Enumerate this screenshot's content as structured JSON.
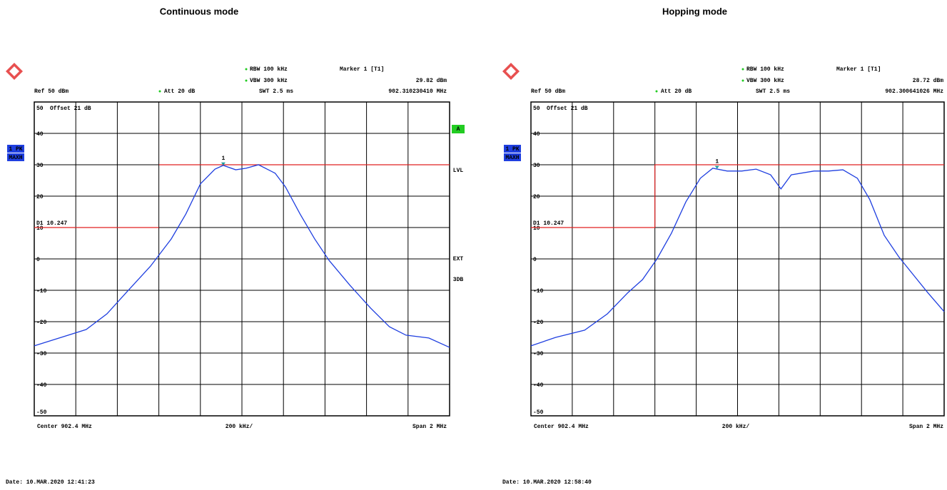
{
  "chart_data": [
    {
      "type": "line",
      "title": "Continuous mode",
      "ref_label": "Ref 50 dBm",
      "att_label": "Att 20 dB",
      "rbw_label": "RBW 100 kHz",
      "vbw_label": "VBW 300 kHz",
      "swt_label": "SWT 2.5 ms",
      "offset_label": "Offset 21 dB",
      "marker_title": "Marker 1 [T1]",
      "marker_level_label": "29.82 dBm",
      "marker_freq_label": "902.310230410 MHz",
      "center_label": "Center 902.4 MHz",
      "div_label": "200 kHz/",
      "span_label": "Span 2 MHz",
      "date_label": "Date: 10.MAR.2020 12:41:23",
      "trace_labels": [
        "1 PK",
        "MAXH"
      ],
      "side_labels": [
        "A",
        "LVL",
        "EXT",
        "3DB"
      ],
      "limit_label": "D1 10.247",
      "xlim": [
        901.4,
        903.4
      ],
      "xticks": [
        901.4,
        901.6,
        901.8,
        902.0,
        902.2,
        902.4,
        902.6,
        902.8,
        903.0,
        903.2,
        903.4
      ],
      "ylim": [
        -50,
        50
      ],
      "yticks": [
        50,
        40,
        30,
        20,
        10,
        0,
        -10,
        -20,
        -30,
        -40,
        -50
      ],
      "grid": true,
      "color": "#1f3fe0",
      "x": [
        901.4,
        901.65,
        901.75,
        901.85,
        901.96,
        902.06,
        902.13,
        902.2,
        902.27,
        902.31,
        902.37,
        902.42,
        902.48,
        902.56,
        902.61,
        902.68,
        902.75,
        902.82,
        902.92,
        903.02,
        903.11,
        903.19,
        903.3,
        903.4
      ],
      "values": [
        -27.7,
        -22.5,
        -17.5,
        -10.2,
        -2.3,
        6.4,
        14.3,
        23.9,
        28.6,
        29.8,
        28.4,
        28.9,
        30,
        27.3,
        22.9,
        14.3,
        6.4,
        -0.5,
        -8.4,
        -15.7,
        -21.6,
        -24.3,
        -25.2,
        -28.2
      ],
      "limit_line": {
        "color": "#e02020",
        "x": [
          901.4,
          902.0,
          902.0,
          902.0,
          903.4
        ],
        "values": [
          10,
          10,
          null,
          30,
          30
        ]
      },
      "marker": {
        "label": "1",
        "x": 902.31023041,
        "value": 29.82,
        "color": "#1a9a9a"
      }
    },
    {
      "type": "line",
      "title": "Hopping mode",
      "ref_label": "Ref 50 dBm",
      "att_label": "Att 20 dB",
      "rbw_label": "RBW 100 kHz",
      "vbw_label": "VBW 300 kHz",
      "swt_label": "SWT 2.5 ms",
      "offset_label": "Offset 21 dB",
      "marker_title": "Marker 1 [T1]",
      "marker_level_label": "28.72 dBm",
      "marker_freq_label": "902.300641026 MHz",
      "center_label": "Center 902.4 MHz",
      "div_label": "200 kHz/",
      "span_label": "Span 2 MHz",
      "date_label": "Date: 10.MAR.2020 12:58:40",
      "trace_labels": [
        "1 PK",
        "MAXH"
      ],
      "limit_label": "D1 10.247",
      "xlim": [
        901.4,
        903.4
      ],
      "xticks": [
        901.4,
        901.6,
        901.8,
        902.0,
        902.2,
        902.4,
        902.6,
        902.8,
        903.0,
        903.2,
        903.4
      ],
      "ylim": [
        -50,
        50
      ],
      "yticks": [
        50,
        40,
        30,
        20,
        10,
        0,
        -10,
        -20,
        -30,
        -40,
        -50
      ],
      "grid": true,
      "color": "#1f3fe0",
      "x": [
        901.4,
        901.52,
        901.66,
        901.77,
        901.87,
        901.94,
        902.01,
        902.08,
        902.15,
        902.22,
        902.28,
        902.35,
        902.42,
        902.49,
        902.56,
        902.61,
        902.66,
        902.77,
        902.84,
        902.91,
        902.98,
        903.04,
        903.11,
        903.18,
        903.25,
        903.32,
        903.4
      ],
      "values": [
        -27.7,
        -25,
        -22.7,
        -17.5,
        -10.7,
        -6.6,
        0,
        8.2,
        18.2,
        25.7,
        28.9,
        28,
        28,
        28.6,
        26.8,
        22.3,
        26.8,
        28,
        28,
        28.4,
        25.7,
        18.9,
        7.5,
        0.7,
        -5,
        -10.7,
        -16.8
      ],
      "limit_line": {
        "color": "#e02020",
        "x": [
          901.4,
          902.0,
          902.0,
          903.4
        ],
        "values": [
          10,
          10,
          30,
          30
        ]
      },
      "marker": {
        "label": "1",
        "x": 902.300641026,
        "value": 28.72,
        "color": "#1a9a9a"
      }
    }
  ]
}
